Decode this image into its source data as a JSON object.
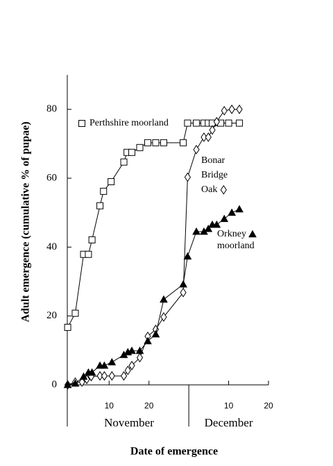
{
  "chart_data": {
    "type": "line",
    "ylabel": "Adult emergence   (cumulative % of pupae)",
    "xlabel": "Date of emergence",
    "months": [
      {
        "label": "November",
        "value": 15
      },
      {
        "label": "December",
        "value": 40
      }
    ],
    "month_divider": 30,
    "xlim": [
      -0.5,
      50
    ],
    "ylim": [
      0,
      90
    ],
    "xticks": [
      10,
      20,
      {
        "value": 40,
        "label": "10"
      },
      {
        "value": 50,
        "label": "20"
      }
    ],
    "yticks": [
      0,
      20,
      40,
      60,
      80
    ],
    "series": [
      {
        "name": [
          "Perthshire moorland"
        ],
        "marker": "square",
        "color": "#000000",
        "x": [
          -0.4,
          1.5,
          3.6,
          4.8,
          5.7,
          7.7,
          8.6,
          10.5,
          13.7,
          14.5,
          15.7,
          17.7,
          19.7,
          21.7,
          23.7,
          28.6,
          29.7,
          31.9,
          33.8,
          34.9,
          35.9,
          38,
          40,
          42.7
        ],
        "values": [
          16.7,
          20.8,
          37.9,
          37.9,
          42.1,
          52,
          56.2,
          59,
          64.7,
          67.5,
          67.5,
          68.9,
          70.3,
          70.3,
          70.3,
          70.3,
          76,
          76,
          76,
          76,
          76,
          76,
          76,
          76
        ]
      },
      {
        "name": [
          "Bonar",
          "Bridge",
          "Oak"
        ],
        "marker": "diamond",
        "color": "#000000",
        "x": [
          -0.4,
          1.5,
          3.2,
          4.4,
          5.5,
          7.7,
          8.8,
          10.7,
          13.7,
          14.7,
          15.7,
          17.7,
          19.7,
          21.7,
          23.7,
          28.6,
          29.7,
          31.9,
          33.8,
          34.9,
          35.9,
          37,
          38.9,
          40.8,
          42.7
        ],
        "values": [
          0,
          0.8,
          0.8,
          1.6,
          2.4,
          2.6,
          2.6,
          2.6,
          2.6,
          4.2,
          5.6,
          7.9,
          14.1,
          16.1,
          19.7,
          26.8,
          60.3,
          68.3,
          71.9,
          71.9,
          74,
          76.4,
          79.6,
          80,
          80
        ]
      },
      {
        "name": [
          "Orkney",
          "moorland"
        ],
        "marker": "triangle",
        "color": "#000000",
        "x": [
          -0.4,
          1.5,
          3.6,
          4.8,
          5.7,
          7.7,
          8.8,
          10.7,
          13.7,
          14.7,
          15.7,
          17.7,
          19.7,
          21.7,
          23.7,
          28.6,
          29.7,
          31.9,
          33.8,
          34.9,
          35.9,
          37,
          38.9,
          40.8,
          42.7
        ],
        "values": [
          0,
          0.4,
          2.4,
          3.6,
          3.6,
          5.6,
          5.6,
          6.6,
          8.7,
          9.5,
          9.9,
          9.9,
          12.7,
          14.7,
          24.8,
          29.2,
          37.3,
          44.5,
          44.5,
          45.3,
          46.5,
          46.5,
          48.2,
          50,
          51
        ]
      }
    ]
  }
}
